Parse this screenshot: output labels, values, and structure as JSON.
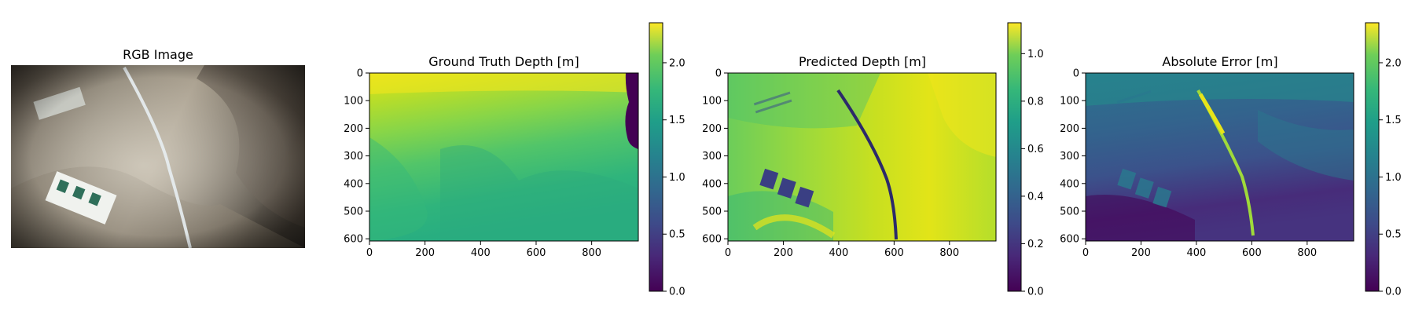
{
  "chart_data": [
    {
      "type": "image",
      "title": "RGB Image"
    },
    {
      "type": "heatmap",
      "title": "Ground Truth Depth [m]",
      "xticks": [
        0,
        200,
        400,
        600,
        800
      ],
      "yticks": [
        0,
        100,
        200,
        300,
        400,
        500,
        600
      ],
      "xlim": [
        0,
        968
      ],
      "ylim": [
        608,
        0
      ],
      "colorbar": {
        "min": 0.0,
        "max": 2.35,
        "ticks": [
          "0.0",
          "0.5",
          "1.0",
          "1.5",
          "2.0"
        ],
        "values": [
          0.0,
          0.5,
          1.0,
          1.5,
          2.0
        ]
      },
      "colormap": "viridis"
    },
    {
      "type": "heatmap",
      "title": "Predicted Depth [m]",
      "xticks": [
        0,
        200,
        400,
        600,
        800
      ],
      "yticks": [
        0,
        100,
        200,
        300,
        400,
        500,
        600
      ],
      "xlim": [
        0,
        968
      ],
      "ylim": [
        608,
        0
      ],
      "colorbar": {
        "min": 0.0,
        "max": 1.13,
        "ticks": [
          "0.0",
          "0.2",
          "0.4",
          "0.6",
          "0.8",
          "1.0"
        ],
        "values": [
          0.0,
          0.2,
          0.4,
          0.6,
          0.8,
          1.0
        ]
      },
      "colormap": "viridis"
    },
    {
      "type": "heatmap",
      "title": "Absolute Error [m]",
      "xticks": [
        0,
        200,
        400,
        600,
        800
      ],
      "yticks": [
        0,
        100,
        200,
        300,
        400,
        500,
        600
      ],
      "xlim": [
        0,
        968
      ],
      "ylim": [
        608,
        0
      ],
      "colorbar": {
        "min": 0.0,
        "max": 2.35,
        "ticks": [
          "0.0",
          "0.5",
          "1.0",
          "1.5",
          "2.0"
        ],
        "values": [
          0.0,
          0.5,
          1.0,
          1.5,
          2.0
        ]
      },
      "colormap": "viridis"
    }
  ],
  "colors": {
    "viridis_0": "#440154",
    "viridis_25": "#3b528b",
    "viridis_50": "#21918c",
    "viridis_75": "#5ec962",
    "viridis_100": "#fde725"
  }
}
